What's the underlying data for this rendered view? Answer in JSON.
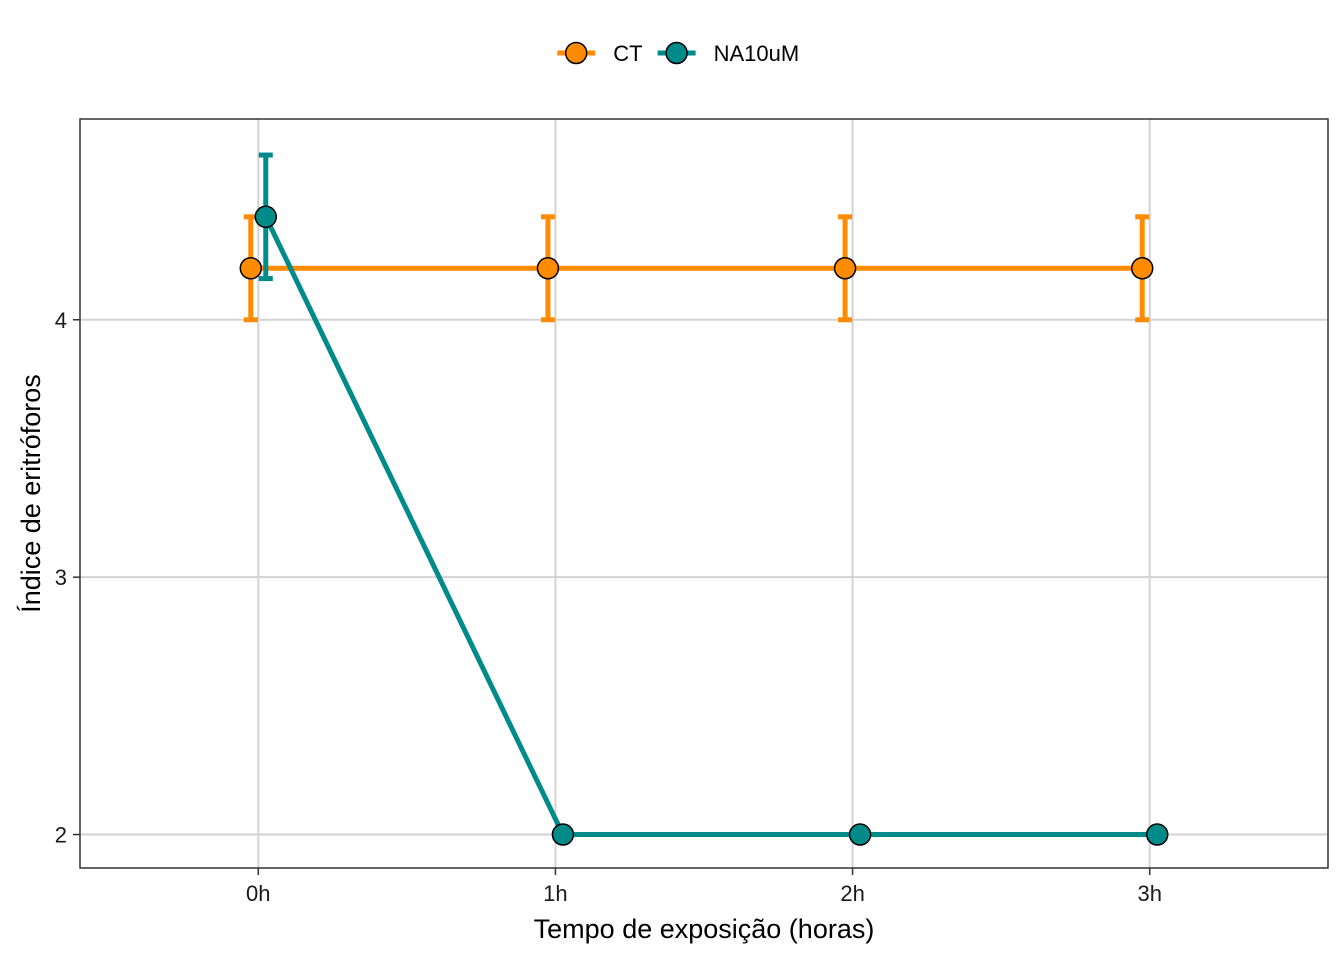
{
  "chart_data": {
    "type": "line",
    "title": "",
    "xlabel": "Tempo de exposição (horas)",
    "ylabel": "Índice de eritróforos",
    "categories": [
      "0h",
      "1h",
      "2h",
      "3h"
    ],
    "ylim": [
      1.87,
      4.78
    ],
    "yticks": [
      "2",
      "3",
      "4"
    ],
    "grid": true,
    "legend_position": "top",
    "series": [
      {
        "name": "CT",
        "color": "#FF8C00",
        "values": [
          4.2,
          4.2,
          4.2,
          4.2
        ],
        "err_low": [
          4.0,
          4.0,
          4.0,
          4.0
        ],
        "err_high": [
          4.4,
          4.4,
          4.4,
          4.4
        ]
      },
      {
        "name": "NA10uM",
        "color": "#008B8B",
        "values": [
          4.4,
          2.0,
          2.0,
          2.0
        ],
        "err_low": [
          4.16,
          null,
          null,
          null
        ],
        "err_high": [
          4.64,
          null,
          null,
          null
        ]
      }
    ]
  }
}
